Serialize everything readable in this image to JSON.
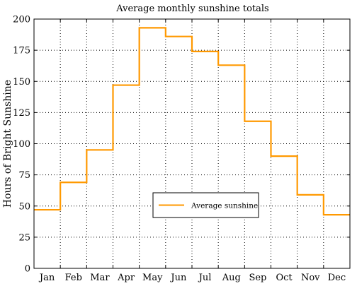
{
  "chart_data": {
    "type": "line",
    "step": true,
    "title": "Average monthly sunshine totals",
    "xlabel": "",
    "ylabel": "Hours of Bright Sunshine",
    "categories": [
      "Jan",
      "Feb",
      "Mar",
      "Apr",
      "May",
      "Jun",
      "Jul",
      "Aug",
      "Sep",
      "Oct",
      "Nov",
      "Dec"
    ],
    "series": [
      {
        "name": "Average sunshine",
        "color": "#ff9900",
        "values": [
          47,
          69,
          95,
          147,
          193,
          186,
          174,
          163,
          118,
          90,
          59,
          43
        ]
      }
    ],
    "ylim": [
      0,
      200
    ],
    "yticks": [
      0,
      25,
      50,
      75,
      100,
      125,
      150,
      175,
      200
    ],
    "grid": true,
    "legend_position": "lower-center"
  }
}
